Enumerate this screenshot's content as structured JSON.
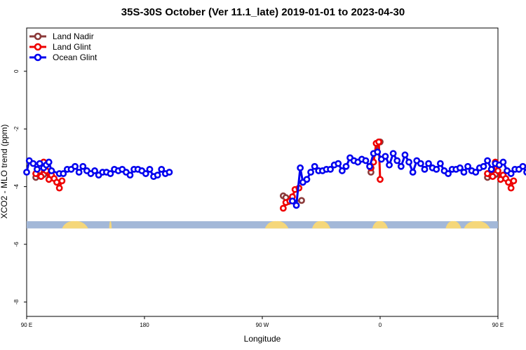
{
  "chart_data": {
    "type": "line",
    "title": "35S-30S October (Ver 11.1_late)   2019-01-01 to 2023-04-30",
    "xlabel": "Longitude",
    "ylabel": "XCO2 - MLO trend (ppm)",
    "xlim": [
      90,
      450
    ],
    "ylim": [
      -8.5,
      1.5
    ],
    "x_ticks": [
      {
        "value": 90,
        "label": "90 E"
      },
      {
        "value": 180,
        "label": "180"
      },
      {
        "value": 270,
        "label": "90 W"
      },
      {
        "value": 360,
        "label": "0"
      },
      {
        "value": 450,
        "label": "90 E"
      },
      {
        "value": 540,
        "label": "180"
      }
    ],
    "y_ticks": [
      0,
      -2,
      -4,
      -6,
      -8
    ],
    "legend": {
      "position": "top-left"
    },
    "grid": false,
    "land_mask_band": {
      "y_range": [
        -5.45,
        -5.2
      ],
      "ocean_color": "#a3b8d8",
      "land_color": "#f5d77a",
      "land_spans": [
        [
          117,
          137
        ],
        [
          153,
          155
        ],
        [
          272,
          290
        ],
        [
          308,
          322
        ],
        [
          354,
          366
        ],
        [
          410,
          422
        ],
        [
          424,
          444
        ]
      ]
    },
    "series": [
      {
        "name": "Land Nadir",
        "color": "#8b3a3a",
        "segments": [
          [
            [
              97,
              -3.55
            ],
            [
              97,
              -3.68
            ],
            [
              100,
              -3.62
            ],
            [
              103,
              -3.58
            ]
          ],
          [
            [
              286,
              -4.32
            ],
            [
              288,
              -4.38
            ],
            [
              290,
              -4.52
            ],
            [
              300,
              -4.48
            ]
          ],
          [
            [
              353,
              -3.5
            ],
            [
              353,
              -3.35
            ],
            [
              359,
              -2.45
            ],
            [
              360,
              -2.45
            ]
          ],
          [
            [
              442,
              -3.55
            ],
            [
              442,
              -3.68
            ],
            [
              445,
              -3.62
            ],
            [
              448,
              -3.58
            ]
          ]
        ]
      },
      {
        "name": "Land Glint",
        "color": "#ee0000",
        "segments": [
          [
            [
              97,
              -3.55
            ],
            [
              101,
              -3.65
            ],
            [
              103,
              -3.15
            ],
            [
              105,
              -3.45
            ],
            [
              107,
              -3.75
            ],
            [
              109,
              -3.6
            ],
            [
              111,
              -3.72
            ],
            [
              113,
              -3.85
            ],
            [
              115,
              -4.05
            ],
            [
              117,
              -3.8
            ]
          ],
          [
            [
              286,
              -4.75
            ],
            [
              288,
              -4.55
            ],
            [
              291,
              -4.5
            ],
            [
              293,
              -4.35
            ],
            [
              295,
              -4.1
            ],
            [
              298,
              -4.05
            ]
          ],
          [
            [
              353,
              -3.35
            ],
            [
              355,
              -3.15
            ],
            [
              357,
              -2.5
            ],
            [
              359,
              -2.45
            ],
            [
              360,
              -3.75
            ]
          ],
          [
            [
              442,
              -3.55
            ],
            [
              446,
              -3.65
            ],
            [
              448,
              -3.15
            ],
            [
              450,
              -3.45
            ],
            [
              452,
              -3.75
            ],
            [
              454,
              -3.6
            ],
            [
              456,
              -3.72
            ],
            [
              458,
              -3.85
            ],
            [
              460,
              -4.05
            ],
            [
              462,
              -3.8
            ]
          ]
        ]
      },
      {
        "name": "Ocean Glint",
        "color": "#0000ee",
        "segments": [
          [
            [
              90,
              -3.5
            ],
            [
              92,
              -3.1
            ],
            [
              95,
              -3.2
            ],
            [
              98,
              -3.4
            ],
            [
              100,
              -3.2
            ],
            [
              103,
              -3.35
            ],
            [
              105,
              -3.25
            ],
            [
              107,
              -3.15
            ],
            [
              109,
              -3.45
            ],
            [
              115,
              -3.55
            ],
            [
              118,
              -3.55
            ],
            [
              121,
              -3.4
            ],
            [
              124,
              -3.4
            ],
            [
              127,
              -3.3
            ],
            [
              130,
              -3.5
            ],
            [
              133,
              -3.3
            ],
            [
              136,
              -3.45
            ],
            [
              139,
              -3.55
            ],
            [
              142,
              -3.45
            ],
            [
              145,
              -3.6
            ],
            [
              148,
              -3.5
            ],
            [
              151,
              -3.5
            ],
            [
              154,
              -3.55
            ],
            [
              157,
              -3.4
            ],
            [
              160,
              -3.45
            ],
            [
              163,
              -3.4
            ],
            [
              166,
              -3.5
            ],
            [
              169,
              -3.6
            ],
            [
              172,
              -3.4
            ],
            [
              175,
              -3.4
            ],
            [
              178,
              -3.45
            ],
            [
              181,
              -3.55
            ],
            [
              184,
              -3.4
            ],
            [
              187,
              -3.65
            ],
            [
              190,
              -3.6
            ],
            [
              193,
              -3.4
            ],
            [
              196,
              -3.55
            ],
            [
              199,
              -3.5
            ]
          ],
          [
            [
              293,
              -4.5
            ],
            [
              296,
              -4.65
            ],
            [
              299,
              -3.35
            ],
            [
              301,
              -3.85
            ],
            [
              304,
              -3.75
            ],
            [
              307,
              -3.5
            ],
            [
              310,
              -3.3
            ],
            [
              313,
              -3.45
            ],
            [
              316,
              -3.45
            ],
            [
              319,
              -3.4
            ],
            [
              322,
              -3.4
            ],
            [
              325,
              -3.25
            ],
            [
              328,
              -3.2
            ],
            [
              331,
              -3.45
            ],
            [
              334,
              -3.3
            ],
            [
              337,
              -3.0
            ],
            [
              340,
              -3.1
            ],
            [
              343,
              -3.15
            ],
            [
              346,
              -3.05
            ],
            [
              349,
              -3.1
            ],
            [
              352,
              -3.3
            ],
            [
              355,
              -2.85
            ],
            [
              358,
              -2.8
            ],
            [
              361,
              -3.05
            ],
            [
              364,
              -2.95
            ],
            [
              367,
              -3.25
            ],
            [
              370,
              -2.85
            ],
            [
              373,
              -3.1
            ],
            [
              376,
              -3.3
            ],
            [
              379,
              -2.9
            ],
            [
              382,
              -3.15
            ],
            [
              385,
              -3.5
            ],
            [
              388,
              -3.1
            ],
            [
              391,
              -3.2
            ],
            [
              394,
              -3.4
            ],
            [
              397,
              -3.2
            ],
            [
              400,
              -3.35
            ],
            [
              403,
              -3.4
            ],
            [
              406,
              -3.2
            ],
            [
              409,
              -3.45
            ],
            [
              412,
              -3.55
            ],
            [
              415,
              -3.4
            ],
            [
              418,
              -3.4
            ],
            [
              421,
              -3.35
            ],
            [
              424,
              -3.5
            ],
            [
              427,
              -3.3
            ],
            [
              430,
              -3.45
            ],
            [
              433,
              -3.5
            ],
            [
              436,
              -3.35
            ],
            [
              439,
              -3.3
            ],
            [
              442,
              -3.1
            ],
            [
              445,
              -3.4
            ],
            [
              448,
              -3.2
            ],
            [
              451,
              -3.25
            ],
            [
              454,
              -3.15
            ],
            [
              457,
              -3.45
            ],
            [
              460,
              -3.55
            ],
            [
              463,
              -3.4
            ],
            [
              466,
              -3.4
            ],
            [
              469,
              -3.3
            ],
            [
              472,
              -3.5
            ],
            [
              475,
              -3.3
            ]
          ]
        ]
      }
    ]
  }
}
